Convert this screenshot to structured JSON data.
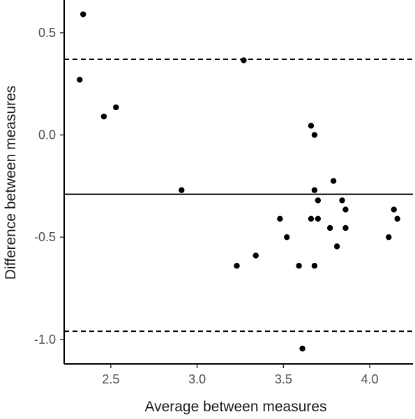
{
  "chart_data": {
    "type": "scatter",
    "title": "",
    "xlabel": "Average between measures",
    "ylabel": "Difference between measures",
    "xlim": [
      2.23,
      4.25
    ],
    "ylim": [
      -1.12,
      0.66
    ],
    "x_ticks": [
      2.5,
      3.0,
      3.5,
      4.0
    ],
    "x_tick_labels": [
      "2.5",
      "3.0",
      "3.5",
      "4.0"
    ],
    "y_ticks": [
      0.5,
      0.0,
      -0.5,
      -1.0
    ],
    "y_tick_labels": [
      "0.5",
      "0.0",
      "-0.5",
      "-1.0"
    ],
    "grid": false,
    "legend": "none",
    "reference_lines": {
      "mean_difference": -0.29,
      "upper_limit": 0.37,
      "lower_limit": -0.96
    },
    "points": [
      {
        "x": 2.34,
        "y": 0.59
      },
      {
        "x": 2.32,
        "y": 0.27
      },
      {
        "x": 2.46,
        "y": 0.09
      },
      {
        "x": 2.53,
        "y": 0.135
      },
      {
        "x": 2.91,
        "y": -0.27
      },
      {
        "x": 3.23,
        "y": -0.64
      },
      {
        "x": 3.27,
        "y": 0.365
      },
      {
        "x": 3.34,
        "y": -0.59
      },
      {
        "x": 3.48,
        "y": -0.41
      },
      {
        "x": 3.52,
        "y": -0.5
      },
      {
        "x": 3.59,
        "y": -0.64
      },
      {
        "x": 3.61,
        "y": -1.045
      },
      {
        "x": 3.66,
        "y": 0.045
      },
      {
        "x": 3.66,
        "y": -0.41
      },
      {
        "x": 3.68,
        "y": 0.0
      },
      {
        "x": 3.68,
        "y": -0.27
      },
      {
        "x": 3.68,
        "y": -0.64
      },
      {
        "x": 3.7,
        "y": -0.32
      },
      {
        "x": 3.7,
        "y": -0.41
      },
      {
        "x": 3.77,
        "y": -0.455
      },
      {
        "x": 3.79,
        "y": -0.225
      },
      {
        "x": 3.81,
        "y": -0.545
      },
      {
        "x": 3.84,
        "y": -0.32
      },
      {
        "x": 3.86,
        "y": -0.365
      },
      {
        "x": 3.86,
        "y": -0.455
      },
      {
        "x": 4.11,
        "y": -0.5
      },
      {
        "x": 4.14,
        "y": -0.365
      },
      {
        "x": 4.16,
        "y": -0.41
      }
    ]
  }
}
